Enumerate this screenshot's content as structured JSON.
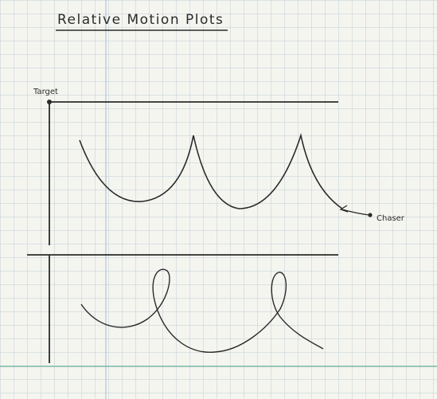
{
  "title": "Relative Motion Plots",
  "labels": {
    "target": "Target",
    "chaser": "Chaser"
  },
  "colors": {
    "ink": "#2a2a2a",
    "margin_line": "#9fc2d6",
    "bottom_rule": "#74b4a3",
    "paper": "#f5f5f0"
  },
  "plots": [
    {
      "name": "upper-plot",
      "curve": "cusped (scalloped) trajectory"
    },
    {
      "name": "lower-plot",
      "curve": "looping trajectory"
    }
  ]
}
